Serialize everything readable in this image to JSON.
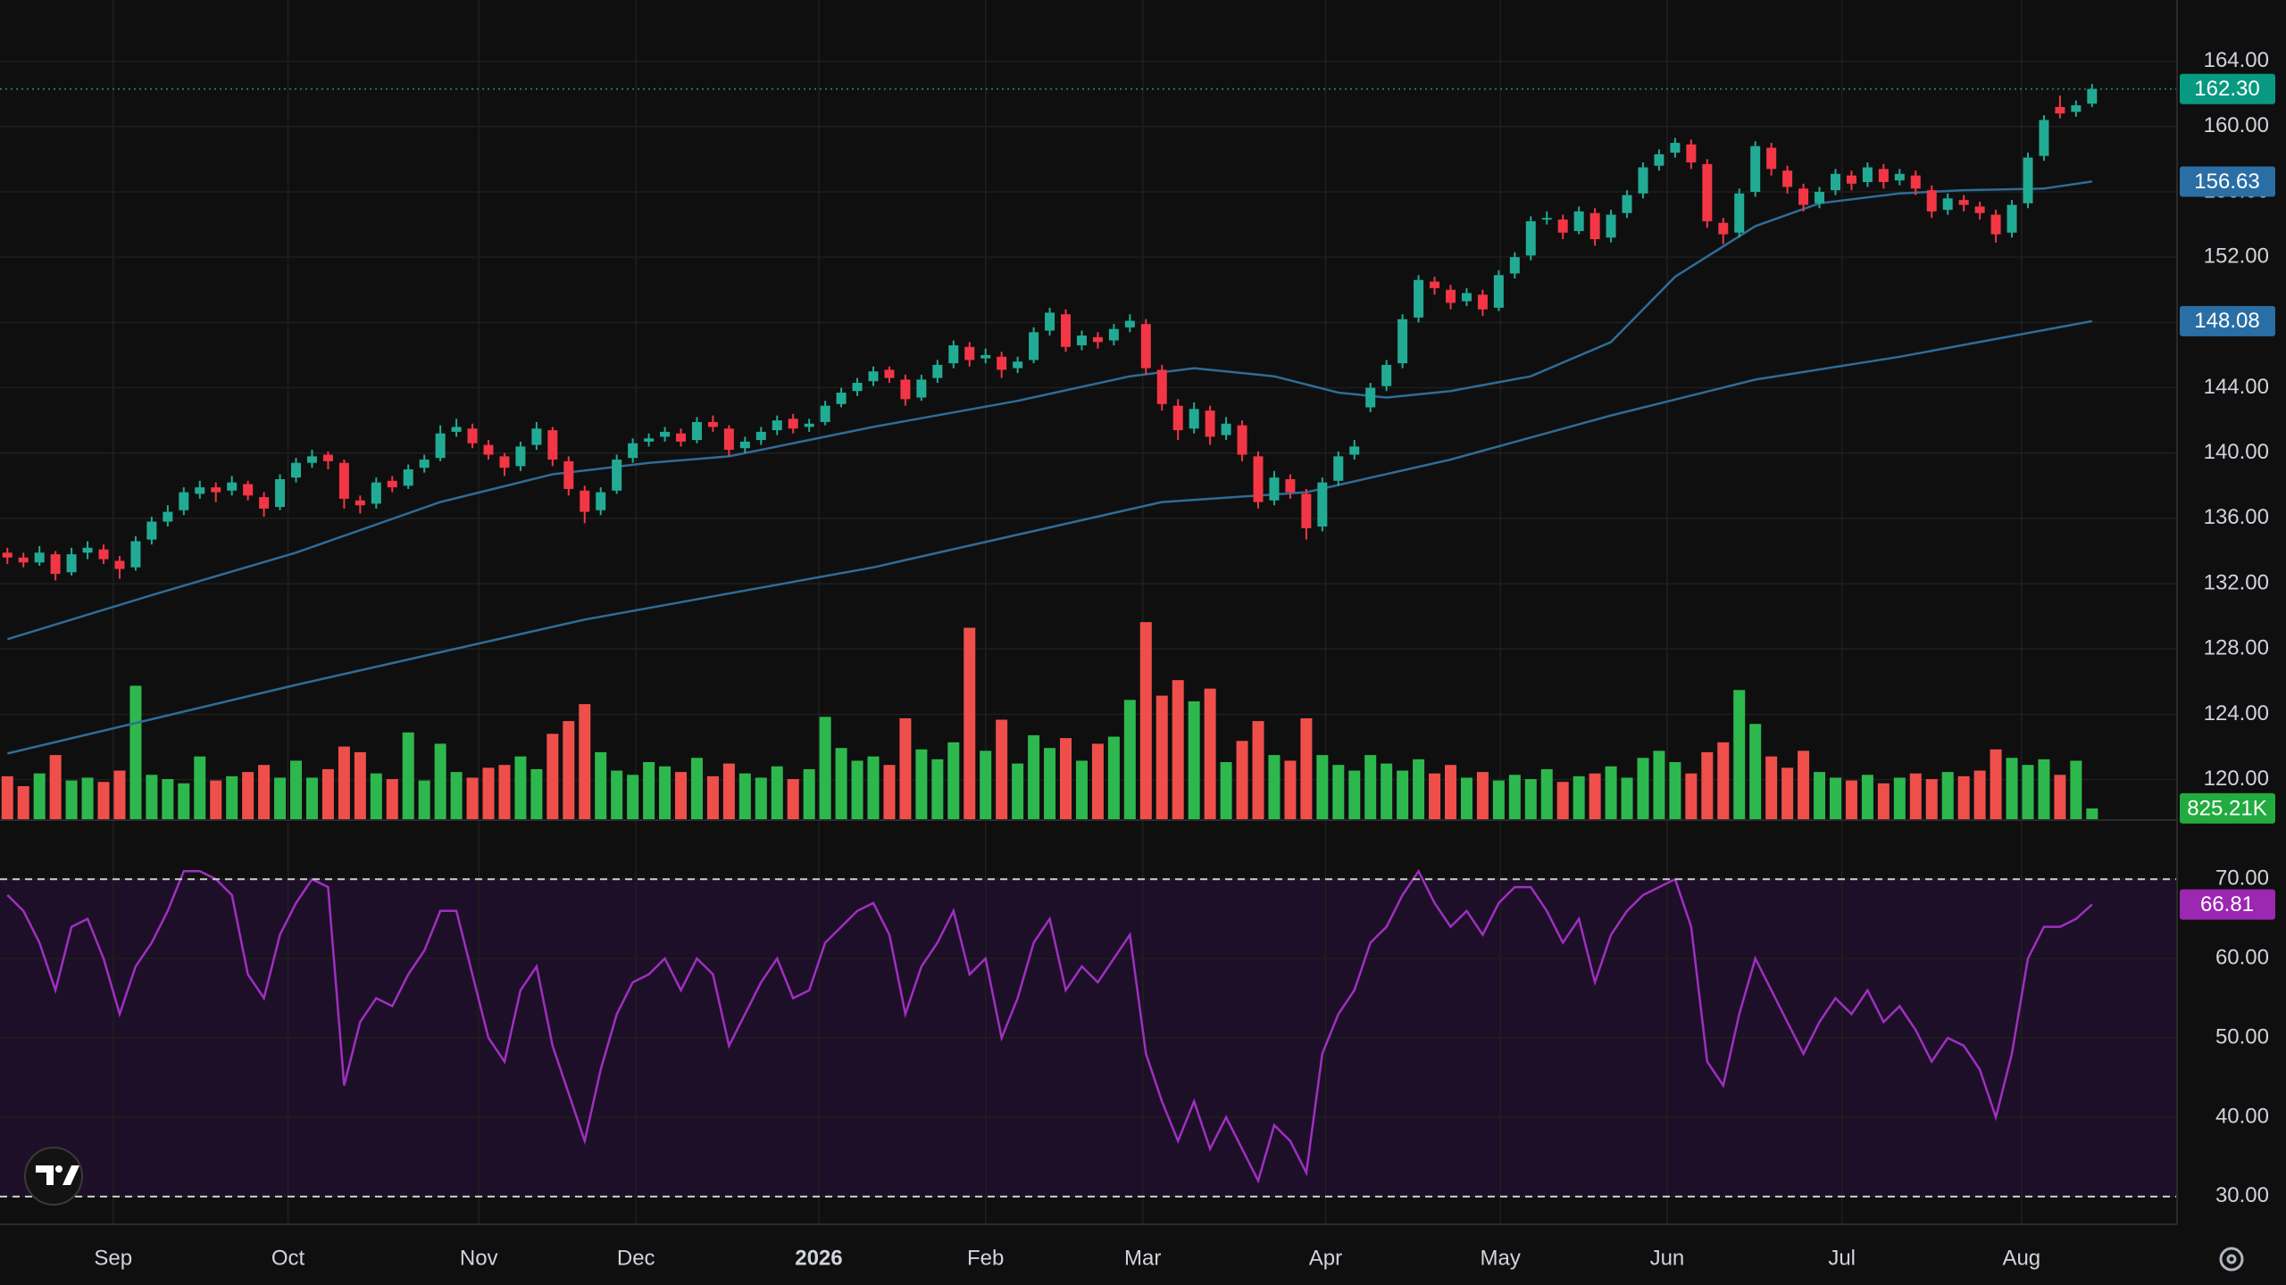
{
  "chart_data": {
    "type": "candlestick",
    "xlim": [
      -0.46,
      135.3
    ],
    "xticks": [
      {
        "value": 6.6,
        "label": "Sep"
      },
      {
        "value": 17.5,
        "label": "Oct"
      },
      {
        "value": 29.4,
        "label": "Nov"
      },
      {
        "value": 39.2,
        "label": "Dec"
      },
      {
        "value": 50.6,
        "label": "2026"
      },
      {
        "value": 61,
        "label": "Feb"
      },
      {
        "value": 70.8,
        "label": "Mar"
      },
      {
        "value": 82.2,
        "label": "Apr"
      },
      {
        "value": 93.1,
        "label": "May"
      },
      {
        "value": 103.5,
        "label": "Jun"
      },
      {
        "value": 114.4,
        "label": "Jul"
      },
      {
        "value": 125.6,
        "label": "Aug"
      }
    ],
    "ylim": [
      117.52,
      167.75
    ],
    "yticks": [
      {
        "value": 120,
        "label": "120.00"
      },
      {
        "value": 124,
        "label": "124.00"
      },
      {
        "value": 128,
        "label": "128.00"
      },
      {
        "value": 132,
        "label": "132.00"
      },
      {
        "value": 136,
        "label": "136.00"
      },
      {
        "value": 140,
        "label": "140.00"
      },
      {
        "value": 144,
        "label": "144.00"
      },
      {
        "value": 148,
        "label": "148.00"
      },
      {
        "value": 152,
        "label": "152.00"
      },
      {
        "value": 156,
        "label": "156.00"
      },
      {
        "value": 160,
        "label": "160.00"
      },
      {
        "value": 164,
        "label": "164.00"
      }
    ],
    "grid": true,
    "candles": {
      "up_color": "#22ab94",
      "down_color": "#f23645",
      "open": [
        133.9,
        133.6,
        133.3,
        133.8,
        132.7,
        133.9,
        134.1,
        133.4,
        133.0,
        134.7,
        135.8,
        136.5,
        137.5,
        137.9,
        137.7,
        138.1,
        137.3,
        136.7,
        138.5,
        139.4,
        139.9,
        139.4,
        137.1,
        136.9,
        138.3,
        138.0,
        139.1,
        139.7,
        141.3,
        141.5,
        140.5,
        139.8,
        139.2,
        140.5,
        141.4,
        139.5,
        137.7,
        136.5,
        137.7,
        139.7,
        140.7,
        141.0,
        141.2,
        140.8,
        141.9,
        141.5,
        140.3,
        140.8,
        141.4,
        142.1,
        141.6,
        141.9,
        143.0,
        143.8,
        144.4,
        145.1,
        144.5,
        143.4,
        144.6,
        145.5,
        146.5,
        145.8,
        145.9,
        145.2,
        145.7,
        147.5,
        148.5,
        146.6,
        147.1,
        146.9,
        147.7,
        147.9,
        145.1,
        142.9,
        141.5,
        142.6,
        141.1,
        141.7,
        139.8,
        137.1,
        138.4,
        137.5,
        135.5,
        138.3,
        139.9,
        142.8,
        144.1,
        145.5,
        148.3,
        150.5,
        150.0,
        149.3,
        149.7,
        148.9,
        151.0,
        152.1,
        154.3,
        154.3,
        153.6,
        154.7,
        153.2,
        154.7,
        155.9,
        157.6,
        158.4,
        158.9,
        157.7,
        154.1,
        153.5,
        156.0,
        158.7,
        157.3,
        156.2,
        155.3,
        156.1,
        157.0,
        156.6,
        157.4,
        156.7,
        157.0,
        156.1,
        154.9,
        155.5,
        155.1,
        154.6,
        153.5,
        155.3,
        158.2,
        161.2,
        160.9,
        161.4
      ],
      "high": [
        134.2,
        133.9,
        134.3,
        134.0,
        134.2,
        134.6,
        134.4,
        133.7,
        134.9,
        136.1,
        136.8,
        137.9,
        138.3,
        138.2,
        138.6,
        138.3,
        137.6,
        138.7,
        139.7,
        140.2,
        140.1,
        139.6,
        137.4,
        138.5,
        138.6,
        139.3,
        139.9,
        141.7,
        142.1,
        141.8,
        140.8,
        140.0,
        140.7,
        141.9,
        141.6,
        139.8,
        138.0,
        137.9,
        139.9,
        140.9,
        141.2,
        141.6,
        141.5,
        142.2,
        142.3,
        141.7,
        141.0,
        141.6,
        142.3,
        142.4,
        142.1,
        143.2,
        144.0,
        144.6,
        145.3,
        145.3,
        144.8,
        144.8,
        145.7,
        146.9,
        146.8,
        146.4,
        146.2,
        145.9,
        147.7,
        148.9,
        148.8,
        147.5,
        147.4,
        147.9,
        148.5,
        148.2,
        145.4,
        143.3,
        143.1,
        142.9,
        142.2,
        142.0,
        140.1,
        138.9,
        138.7,
        137.8,
        138.5,
        140.1,
        140.8,
        144.3,
        145.7,
        148.5,
        150.9,
        150.8,
        150.3,
        150.1,
        150.0,
        151.2,
        152.3,
        154.5,
        154.8,
        154.6,
        155.1,
        155.0,
        154.9,
        156.1,
        157.8,
        158.6,
        159.3,
        159.2,
        158.0,
        154.4,
        156.2,
        159.1,
        159.0,
        157.6,
        156.5,
        156.3,
        157.4,
        157.3,
        157.8,
        157.7,
        157.4,
        157.3,
        156.4,
        155.9,
        155.8,
        155.4,
        154.9,
        155.5,
        158.4,
        160.7,
        161.9,
        161.6,
        162.6
      ],
      "low": [
        133.2,
        133.0,
        133.1,
        132.2,
        132.5,
        133.5,
        133.2,
        132.3,
        132.8,
        134.4,
        135.5,
        136.2,
        137.2,
        137.0,
        137.4,
        137.1,
        136.1,
        136.5,
        138.2,
        139.1,
        139.0,
        136.6,
        136.3,
        136.6,
        137.6,
        137.8,
        138.8,
        139.5,
        141.0,
        140.3,
        139.6,
        138.6,
        138.9,
        140.2,
        139.2,
        137.4,
        135.7,
        136.2,
        137.5,
        139.4,
        140.4,
        140.7,
        140.4,
        140.6,
        141.3,
        139.8,
        140.0,
        140.5,
        141.1,
        141.2,
        141.3,
        141.7,
        142.8,
        143.5,
        144.1,
        144.3,
        142.9,
        143.2,
        144.3,
        145.2,
        145.3,
        145.5,
        144.6,
        144.9,
        145.5,
        147.2,
        146.2,
        146.3,
        146.4,
        146.6,
        147.4,
        144.8,
        142.6,
        140.8,
        141.2,
        140.5,
        140.8,
        139.5,
        136.6,
        136.8,
        137.2,
        134.7,
        135.2,
        138.0,
        139.6,
        142.5,
        143.8,
        145.2,
        148.0,
        149.7,
        148.8,
        149.0,
        148.4,
        148.7,
        150.7,
        151.8,
        154.0,
        153.1,
        153.4,
        152.7,
        152.9,
        154.4,
        155.6,
        157.3,
        158.1,
        157.4,
        153.8,
        152.8,
        153.2,
        155.7,
        157.0,
        155.9,
        154.8,
        155.0,
        155.8,
        156.1,
        156.3,
        156.2,
        156.4,
        155.8,
        154.4,
        154.6,
        154.8,
        154.3,
        152.9,
        153.2,
        155.0,
        157.9,
        160.5,
        160.6,
        161.2
      ],
      "close": [
        133.6,
        133.3,
        133.9,
        132.6,
        133.8,
        134.2,
        133.5,
        132.9,
        134.6,
        135.8,
        136.4,
        137.6,
        137.9,
        137.6,
        138.2,
        137.4,
        136.6,
        138.4,
        139.4,
        139.8,
        139.5,
        137.2,
        136.8,
        138.2,
        137.9,
        139.0,
        139.6,
        141.2,
        141.6,
        140.6,
        139.9,
        139.1,
        140.4,
        141.5,
        139.6,
        137.8,
        136.4,
        137.6,
        139.6,
        140.6,
        140.9,
        141.3,
        140.7,
        141.9,
        141.6,
        140.2,
        140.7,
        141.3,
        142.0,
        141.5,
        141.8,
        142.9,
        143.7,
        144.3,
        145.0,
        144.6,
        143.3,
        144.5,
        145.4,
        146.6,
        145.7,
        146.0,
        145.1,
        145.6,
        147.4,
        148.6,
        146.5,
        147.2,
        146.8,
        147.6,
        148.1,
        145.2,
        143.0,
        141.4,
        142.7,
        141.0,
        141.8,
        139.9,
        137.0,
        138.5,
        137.6,
        135.4,
        138.2,
        139.8,
        140.4,
        144.0,
        145.4,
        148.2,
        150.6,
        150.1,
        149.2,
        149.8,
        148.8,
        150.9,
        152.0,
        154.2,
        154.4,
        153.5,
        154.8,
        153.1,
        154.6,
        155.8,
        157.5,
        158.3,
        159.0,
        157.8,
        154.2,
        153.4,
        155.9,
        158.8,
        157.4,
        156.3,
        155.2,
        156.0,
        157.1,
        156.5,
        157.5,
        156.6,
        157.1,
        156.2,
        154.8,
        155.6,
        155.2,
        154.7,
        153.4,
        155.2,
        158.1,
        160.4,
        160.8,
        161.3,
        162.3
      ]
    },
    "price_tag": {
      "value": 162.3,
      "label": "162.30",
      "color": "#089981"
    },
    "moving_averages": [
      {
        "color": "#2f6c97",
        "x": [
          0,
          9,
          18,
          27,
          34,
          40,
          45,
          54,
          63,
          70,
          74,
          79,
          83,
          86,
          90,
          95,
          100,
          104,
          109,
          113,
          118,
          122,
          127,
          130
        ],
        "values": [
          128.6,
          131.3,
          133.9,
          137.0,
          138.7,
          139.4,
          139.8,
          141.6,
          143.2,
          144.7,
          145.2,
          144.7,
          143.7,
          143.4,
          143.8,
          144.7,
          146.8,
          150.8,
          153.9,
          155.3,
          155.9,
          156.1,
          156.2,
          156.63
        ],
        "tag_color": "#2a6ea6"
      },
      {
        "color": "#2f6c97",
        "x": [
          0,
          18,
          36,
          54,
          72,
          81,
          90,
          100,
          109,
          118,
          130
        ],
        "values": [
          121.6,
          125.8,
          129.8,
          133.0,
          137.0,
          137.6,
          139.6,
          142.3,
          144.5,
          145.9,
          148.08
        ],
        "tag_color": "#2a6ea6"
      }
    ],
    "volume": {
      "up_color": "#2db84d",
      "down_color": "#ef4f4a",
      "ylim": [
        0,
        58000000
      ],
      "values": [
        3100000,
        2400000,
        3300000,
        4600000,
        2800000,
        3000000,
        2700000,
        3500000,
        9500000,
        3200000,
        2900000,
        2600000,
        4500000,
        2800000,
        3100000,
        3400000,
        3900000,
        3000000,
        4200000,
        3000000,
        3600000,
        5200000,
        4800000,
        3300000,
        2900000,
        6200000,
        2800000,
        5400000,
        3400000,
        3000000,
        3700000,
        3900000,
        4500000,
        3600000,
        6100000,
        7000000,
        8200000,
        4800000,
        3500000,
        3200000,
        4100000,
        3800000,
        3400000,
        4400000,
        3100000,
        4000000,
        3300000,
        3000000,
        3800000,
        2900000,
        3600000,
        7300000,
        5100000,
        4200000,
        4500000,
        3900000,
        7200000,
        5000000,
        4300000,
        5500000,
        13600000,
        4900000,
        7100000,
        4000000,
        6000000,
        5100000,
        5800000,
        4200000,
        5400000,
        5900000,
        8500000,
        14000000,
        8800000,
        9900000,
        8400000,
        9300000,
        4100000,
        5600000,
        7000000,
        4600000,
        4200000,
        7200000,
        4600000,
        3900000,
        3500000,
        4600000,
        4000000,
        3500000,
        4300000,
        3300000,
        3900000,
        3000000,
        3400000,
        2800000,
        3200000,
        2900000,
        3600000,
        2700000,
        3100000,
        3300000,
        3800000,
        3000000,
        4400000,
        4900000,
        4100000,
        3300000,
        4800000,
        5500000,
        9200000,
        6800000,
        4500000,
        3700000,
        4900000,
        3400000,
        3000000,
        2800000,
        3200000,
        2600000,
        3000000,
        3300000,
        2900000,
        3400000,
        3100000,
        3500000,
        5000000,
        4400000,
        3900000,
        4300000,
        3200000,
        4200000,
        825210
      ],
      "tag": {
        "value": 825210,
        "label": "825.21K",
        "color": "#22ab3f"
      }
    },
    "rsi": {
      "color": "#a02fc0",
      "band_color": "#1d0f28",
      "tag_color": "#9c27b0",
      "ylim": [
        26.5,
        75.2
      ],
      "yticks": [
        {
          "value": 30,
          "label": "30.00"
        },
        {
          "value": 40,
          "label": "40.00"
        },
        {
          "value": 50,
          "label": "50.00"
        },
        {
          "value": 60,
          "label": "60.00"
        },
        {
          "value": 70,
          "label": "70.00"
        }
      ],
      "band": [
        30,
        70
      ],
      "values": [
        68,
        66,
        62,
        56,
        64,
        65,
        60,
        53,
        59,
        62,
        66,
        71,
        71,
        70,
        68,
        58,
        55,
        63,
        67,
        70,
        69,
        44,
        52,
        55,
        54,
        58,
        61,
        66,
        66,
        58,
        50,
        47,
        56,
        59,
        49,
        43,
        37,
        46,
        53,
        57,
        58,
        60,
        56,
        60,
        58,
        49,
        53,
        57,
        60,
        55,
        56,
        62,
        64,
        66,
        67,
        63,
        53,
        59,
        62,
        66,
        58,
        60,
        50,
        55,
        62,
        65,
        56,
        59,
        57,
        60,
        63,
        48,
        42,
        37,
        42,
        36,
        40,
        36,
        32,
        39,
        37,
        33,
        48,
        53,
        56,
        62,
        64,
        68,
        71,
        67,
        64,
        66,
        63,
        67,
        69,
        69,
        66,
        62,
        65,
        57,
        63,
        66,
        68,
        69,
        70,
        64,
        47,
        44,
        53,
        60,
        56,
        52,
        48,
        52,
        55,
        53,
        56,
        52,
        54,
        51,
        47,
        50,
        49,
        46,
        40,
        48,
        60,
        64,
        64,
        65,
        66.81
      ]
    }
  }
}
